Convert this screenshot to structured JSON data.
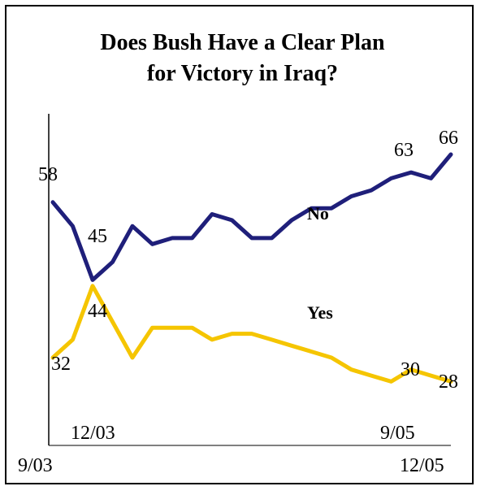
{
  "chart_data": {
    "type": "line",
    "title": [
      "Does Bush Have a Clear Plan",
      "for Victory in Iraq?"
    ],
    "x_tick_labels_bottom": [
      "9/03",
      "12/05"
    ],
    "x_tick_labels_top": [
      "12/03",
      "9/05"
    ],
    "series": [
      {
        "name": "No",
        "color": "#1f1f7a",
        "values": [
          58,
          54,
          45,
          48,
          54,
          51,
          52,
          52,
          56,
          55,
          52,
          52,
          55,
          57,
          57,
          59,
          60,
          62,
          63,
          62,
          66
        ],
        "labels": [
          "58",
          "45",
          "63",
          "66"
        ]
      },
      {
        "name": "Yes",
        "color": "#f5c500",
        "values": [
          32,
          35,
          44,
          38,
          32,
          37,
          37,
          37,
          35,
          36,
          36,
          35,
          34,
          33,
          32,
          30,
          29,
          28,
          30,
          29,
          28
        ],
        "labels": [
          "32",
          "44",
          "30",
          "28"
        ]
      }
    ]
  }
}
